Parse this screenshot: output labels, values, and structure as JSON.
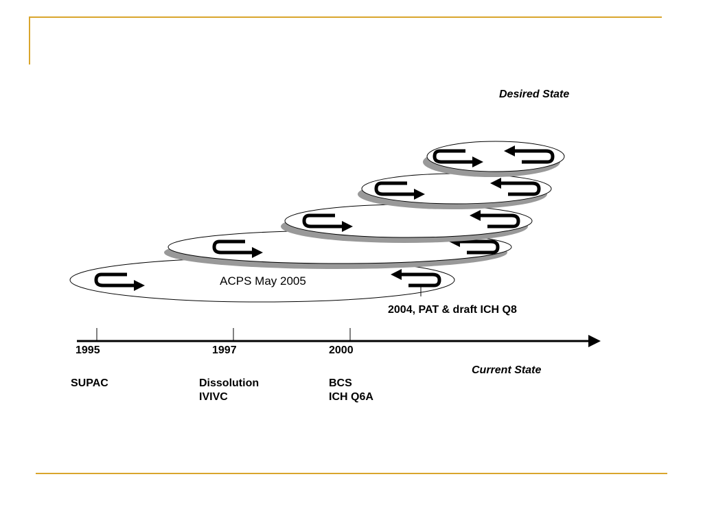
{
  "labels": {
    "desired_state": "Desired State",
    "current_state": "Current State",
    "center": "ACPS May 2005",
    "annotation": "2004, PAT & draft ICH Q8"
  },
  "timeline": [
    {
      "year": "1995",
      "items": [
        "SUPAC"
      ]
    },
    {
      "year": "1997",
      "items": [
        "Dissolution",
        "IVIVC"
      ]
    },
    {
      "year": "2000",
      "items": [
        "BCS",
        "ICH Q6A"
      ]
    }
  ]
}
